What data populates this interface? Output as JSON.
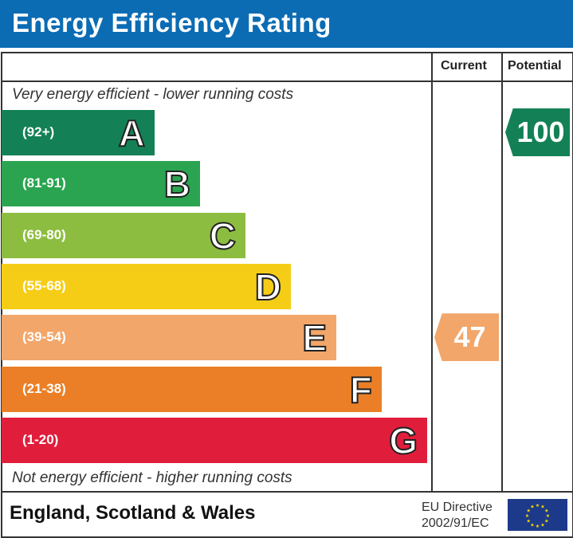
{
  "title": "Energy Efficiency Rating",
  "chart_data": {
    "type": "bar",
    "columns": {
      "current": "Current",
      "potential": "Potential"
    },
    "top_note": "Very energy efficient - lower running costs",
    "bottom_note": "Not energy efficient - higher running costs",
    "bands": [
      {
        "letter": "A",
        "range": "(92+)",
        "color": "#138155"
      },
      {
        "letter": "B",
        "range": "(81-91)",
        "color": "#2aa450"
      },
      {
        "letter": "C",
        "range": "(69-80)",
        "color": "#8dbd40"
      },
      {
        "letter": "D",
        "range": "(55-68)",
        "color": "#f5cd16"
      },
      {
        "letter": "E",
        "range": "(39-54)",
        "color": "#f2a66a"
      },
      {
        "letter": "F",
        "range": "(21-38)",
        "color": "#ea7f27"
      },
      {
        "letter": "G",
        "range": "(1-20)",
        "color": "#e01e3c"
      }
    ],
    "current": {
      "value": "47",
      "band": "E",
      "color": "#f2a66a"
    },
    "potential": {
      "value": "100",
      "band": "A",
      "color": "#138155"
    }
  },
  "footer": {
    "region": "England, Scotland & Wales",
    "directive_line1": "EU Directive",
    "directive_line2": "2002/91/EC"
  }
}
